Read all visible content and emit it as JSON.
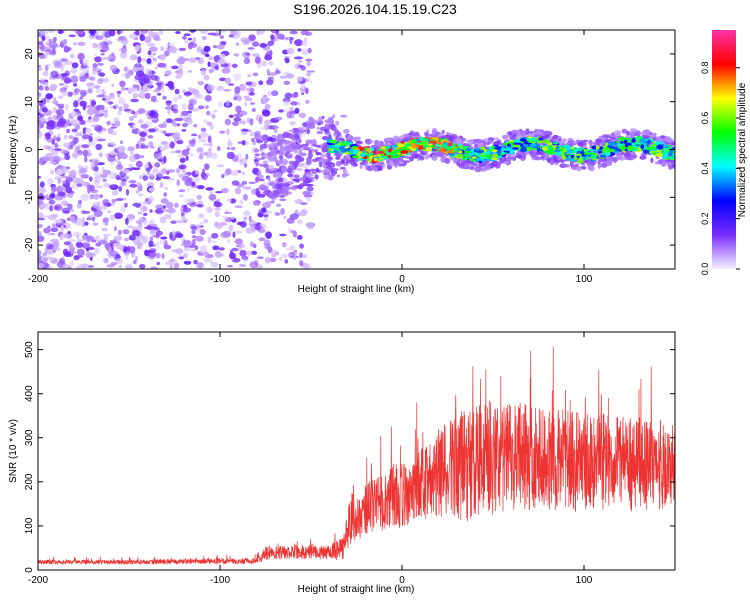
{
  "title": "S196.2026.104.15.19.C23",
  "colors": {
    "trace": "#ee3333",
    "axis": "#000000"
  },
  "chart_data": [
    {
      "type": "heatmap",
      "name": "spectrogram",
      "xlabel": "Height of straight line (km)",
      "ylabel": "Frequency (Hz)",
      "xlim": [
        -200,
        150
      ],
      "ylim": [
        -25,
        25
      ],
      "xticks": [
        -200,
        -100,
        0,
        100
      ],
      "xtick_labels": [
        "-200",
        "-100",
        "0",
        "100"
      ],
      "yticks": [
        -20,
        -10,
        0,
        10,
        20
      ],
      "ytick_labels": [
        "-20",
        "-10",
        "0",
        "10",
        "20"
      ],
      "colorbar": {
        "label": "Normalized spectral amplitude",
        "range": [
          0,
          0.95
        ],
        "ticks": [
          0.0,
          0.2,
          0.4,
          0.6,
          0.8
        ],
        "tick_labels": [
          "0.0",
          "0.2",
          "0.4",
          "0.6",
          "0.8"
        ],
        "stops": [
          "#f4f0ff",
          "#7b2cff",
          "#0000ff",
          "#00ffff",
          "#00ff00",
          "#ffff00",
          "#ff0000",
          "#ff33aa"
        ]
      },
      "features": {
        "noise_region_km": [
          -200,
          -50
        ],
        "signal_band_start_km": -80,
        "signal_center_hz": 0,
        "signal_halfwidth_hz": 3
      }
    },
    {
      "type": "line",
      "name": "snr",
      "xlabel": "Height of straight line (km)",
      "ylabel": "SNR (10 * v/v)",
      "xlim": [
        -200,
        150
      ],
      "ylim": [
        0,
        540
      ],
      "xticks": [
        -200,
        -100,
        0,
        100
      ],
      "xtick_labels": [
        "-200",
        "-100",
        "0",
        "100"
      ],
      "yticks": [
        0,
        100,
        200,
        300,
        400,
        500
      ],
      "ytick_labels": [
        "0",
        "100",
        "200",
        "300",
        "400",
        "500"
      ],
      "series": [
        {
          "name": "SNR",
          "x": [
            -200,
            -150,
            -100,
            -80,
            -75,
            -60,
            -50,
            -40,
            -32,
            -27,
            -26,
            -22,
            -15,
            0,
            15,
            30,
            33,
            45,
            60,
            80,
            100,
            120,
            150
          ],
          "y": [
            18,
            18,
            20,
            20,
            38,
            40,
            40,
            40,
            50,
            140,
            100,
            130,
            150,
            170,
            210,
            240,
            235,
            250,
            260,
            250,
            245,
            240,
            240
          ],
          "spread": [
            5,
            5,
            6,
            7,
            15,
            16,
            16,
            16,
            28,
            75,
            45,
            55,
            65,
            75,
            90,
            120,
            130,
            130,
            125,
            120,
            115,
            110,
            100
          ]
        }
      ]
    }
  ]
}
